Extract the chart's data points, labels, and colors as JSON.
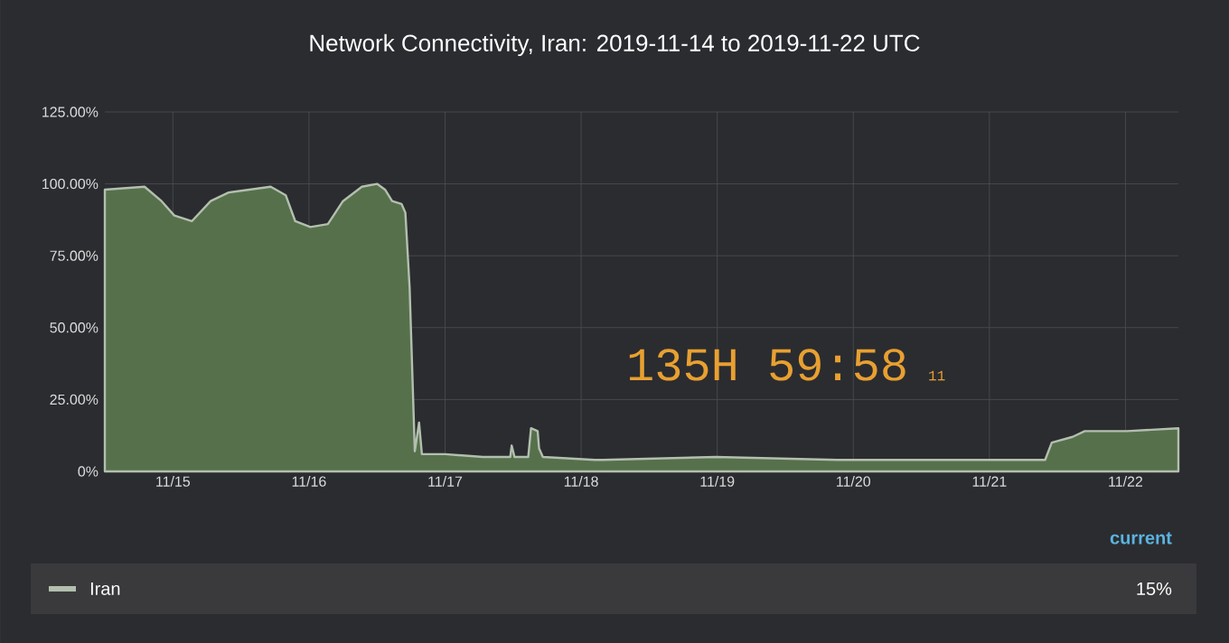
{
  "chart_data": {
    "type": "area",
    "title": "Network Connectivity, Iran: 2019-11-14 to 2019-11-22 UTC",
    "xlim": [
      "2019-11-14T12:00",
      "2019-11-22T09:20"
    ],
    "xticks": [
      {
        "value": "2019-11-15",
        "label": "11/15"
      },
      {
        "value": "2019-11-16",
        "label": "11/16"
      },
      {
        "value": "2019-11-17",
        "label": "11/17"
      },
      {
        "value": "2019-11-18",
        "label": "11/18"
      },
      {
        "value": "2019-11-19",
        "label": "11/19"
      },
      {
        "value": "2019-11-20",
        "label": "11/20"
      },
      {
        "value": "2019-11-21",
        "label": "11/21"
      },
      {
        "value": "2019-11-22",
        "label": "11/22"
      }
    ],
    "ylim": [
      0,
      125
    ],
    "yticks": [
      {
        "value": 0,
        "label": "0%"
      },
      {
        "value": 25,
        "label": "25.00%"
      },
      {
        "value": 50,
        "label": "50.00%"
      },
      {
        "value": 75,
        "label": "75.00%"
      },
      {
        "value": 100,
        "label": "100.00%"
      },
      {
        "value": 125,
        "label": "125.00%"
      }
    ],
    "grid": true,
    "legend": "bottom",
    "legend_title": "current",
    "series": [
      {
        "name": "Iran",
        "color": "#56704c",
        "x": [
          "2019-11-14T12:00",
          "2019-11-14T19:00",
          "2019-11-14T22:00",
          "2019-11-15T00:15",
          "2019-11-15T03:20",
          "2019-11-15T06:40",
          "2019-11-15T09:50",
          "2019-11-15T17:15",
          "2019-11-15T19:55",
          "2019-11-15T21:35",
          "2019-11-16T00:15",
          "2019-11-16T03:20",
          "2019-11-16T06:00",
          "2019-11-16T09:20",
          "2019-11-16T12:00",
          "2019-11-16T13:25",
          "2019-11-16T14:40",
          "2019-11-16T16:20",
          "2019-11-16T17:00",
          "2019-11-16T17:45",
          "2019-11-16T18:40",
          "2019-11-16T19:25",
          "2019-11-16T19:55",
          "2019-11-17T00:00",
          "2019-11-17T06:40",
          "2019-11-17T11:30",
          "2019-11-17T11:45",
          "2019-11-17T12:15",
          "2019-11-17T14:40",
          "2019-11-17T15:10",
          "2019-11-17T16:20",
          "2019-11-17T16:35",
          "2019-11-17T17:15",
          "2019-11-18T02:25",
          "2019-11-18T03:50",
          "2019-11-18T23:45",
          "2019-11-19T21:10",
          "2019-11-21T09:50",
          "2019-11-21T11:00",
          "2019-11-21T14:40",
          "2019-11-21T16:50",
          "2019-11-22T00:15",
          "2019-11-22T09:20"
        ],
        "values": [
          98,
          99,
          94,
          89,
          87,
          94,
          97,
          99,
          96,
          87,
          85,
          86,
          94,
          99,
          100,
          98,
          94,
          93,
          90,
          64,
          7,
          17,
          6,
          6,
          5,
          5,
          9,
          5,
          5,
          15,
          14,
          8,
          5,
          4,
          4,
          5,
          4,
          4,
          10,
          12,
          14,
          14,
          15
        ]
      }
    ],
    "annotations": [
      "135H 59:58",
      "11",
      "15%"
    ]
  }
}
